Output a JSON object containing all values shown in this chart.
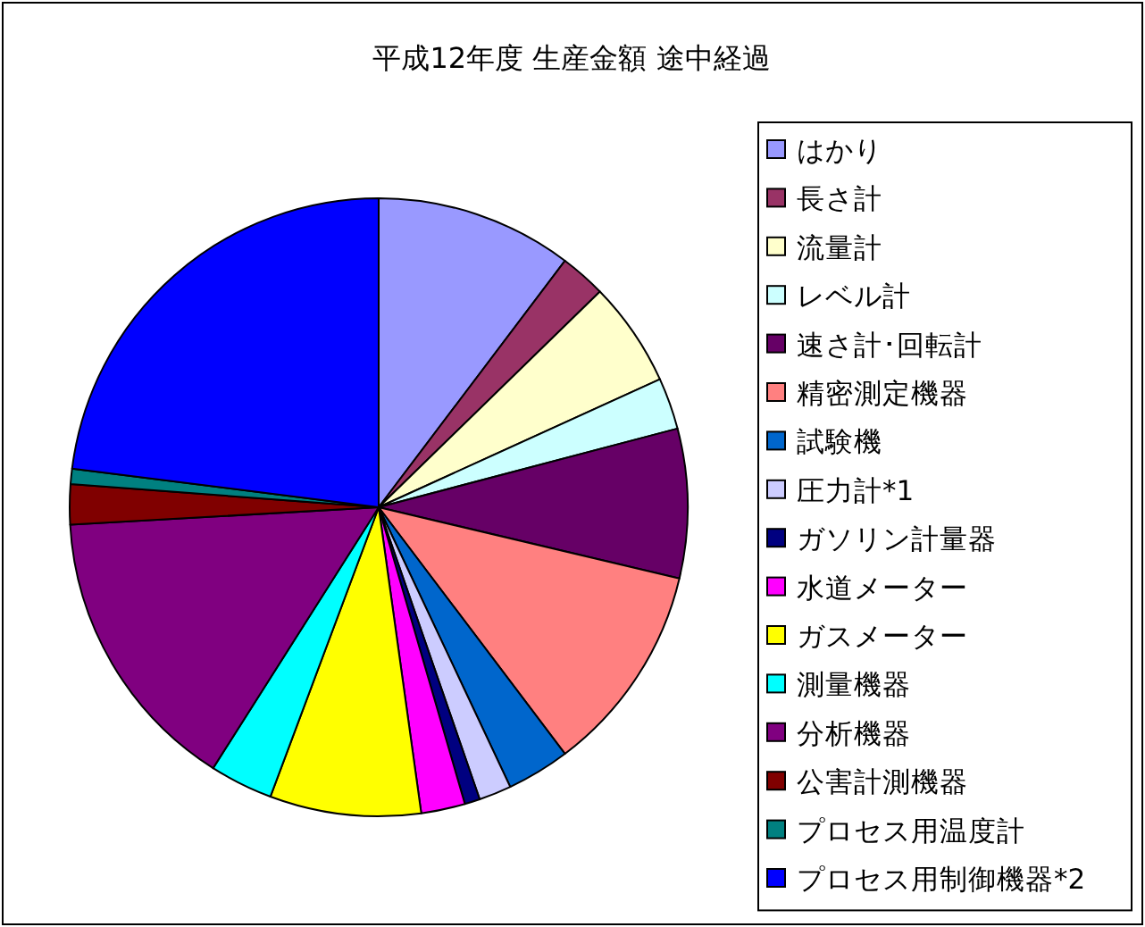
{
  "chart_data": {
    "type": "pie",
    "title": "平成12年度 生産金額 途中経過",
    "categories": [
      "はかり",
      "長さ計",
      "流量計",
      "レベル計",
      "速さ計･回転計",
      "精密測定機器",
      "試験機",
      "圧力計*1",
      "ガソリン計量器",
      "水道メーター",
      "ガスメーター",
      "測量機器",
      "分析機器",
      "公害計測機器",
      "プロセス用温度計",
      "プロセス用制御機器*2"
    ],
    "values": [
      10.3,
      2.4,
      5.5,
      2.7,
      7.8,
      11.0,
      3.3,
      1.7,
      0.8,
      2.3,
      7.9,
      3.3,
      15.1,
      2.1,
      0.8,
      23.0
    ],
    "colors": [
      "#9999ff",
      "#993366",
      "#ffffcc",
      "#ccffff",
      "#660066",
      "#ff8080",
      "#0066cc",
      "#ccccff",
      "#000080",
      "#ff00ff",
      "#ffff00",
      "#00ffff",
      "#800080",
      "#800000",
      "#008080",
      "#0000ff"
    ],
    "legend": "right"
  }
}
